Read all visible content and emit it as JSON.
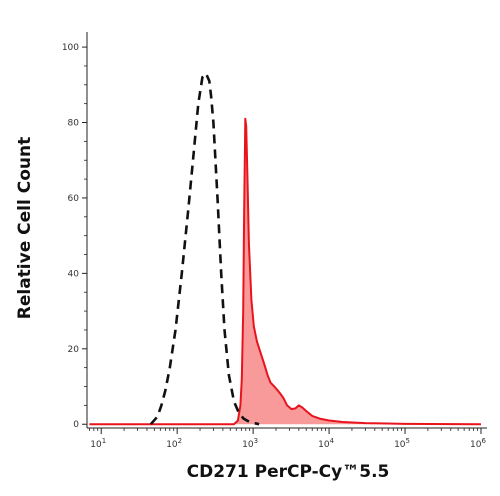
{
  "chart_data": {
    "type": "area",
    "title": "",
    "xlabel": "CD271 PerCP-Cy™5.5",
    "ylabel": "Relative Cell Count",
    "xscale": "log",
    "xlim": [
      6.5,
      1200000
    ],
    "ylim": [
      -1,
      104
    ],
    "grid": false,
    "legend": "none",
    "x_ticks": [
      {
        "value": 10,
        "base": "10",
        "exp": "1"
      },
      {
        "value": 100,
        "base": "10",
        "exp": "2"
      },
      {
        "value": 1000,
        "base": "10",
        "exp": "3"
      },
      {
        "value": 10000,
        "base": "10",
        "exp": "4"
      },
      {
        "value": 100000,
        "base": "10",
        "exp": "5"
      },
      {
        "value": 1000000,
        "base": "10",
        "exp": "6"
      }
    ],
    "y_ticks": [
      {
        "value": 0,
        "label": "0"
      },
      {
        "value": 20,
        "label": "20"
      },
      {
        "value": 40,
        "label": "40"
      },
      {
        "value": 60,
        "label": "60"
      },
      {
        "value": 80,
        "label": "80"
      },
      {
        "value": 100,
        "label": "100"
      }
    ],
    "series": [
      {
        "style": "filled",
        "color": "#e8141c",
        "fill": "#f99a9a",
        "points": [
          [
            7,
            0
          ],
          [
            100,
            0
          ],
          [
            300,
            0
          ],
          [
            560,
            0
          ],
          [
            630,
            1
          ],
          [
            680,
            5
          ],
          [
            710,
            12
          ],
          [
            740,
            30
          ],
          [
            760,
            55
          ],
          [
            780,
            72
          ],
          [
            790,
            81
          ],
          [
            810,
            79
          ],
          [
            840,
            66
          ],
          [
            880,
            48
          ],
          [
            950,
            33
          ],
          [
            1020,
            26
          ],
          [
            1120,
            22
          ],
          [
            1250,
            19
          ],
          [
            1400,
            16
          ],
          [
            1550,
            13
          ],
          [
            1700,
            11
          ],
          [
            1900,
            10
          ],
          [
            2100,
            9
          ],
          [
            2300,
            8
          ],
          [
            2500,
            7
          ],
          [
            2800,
            5
          ],
          [
            3200,
            4
          ],
          [
            3600,
            4.2
          ],
          [
            4000,
            5
          ],
          [
            4400,
            4.5
          ],
          [
            5000,
            3.5
          ],
          [
            6000,
            2.2
          ],
          [
            7500,
            1.5
          ],
          [
            10000,
            1
          ],
          [
            15000,
            0.6
          ],
          [
            30000,
            0.3
          ],
          [
            100000,
            0.1
          ],
          [
            1000000,
            0
          ]
        ]
      },
      {
        "style": "dashed",
        "color": "#111111",
        "points": [
          [
            45,
            0
          ],
          [
            55,
            2
          ],
          [
            62,
            5
          ],
          [
            70,
            9
          ],
          [
            80,
            15
          ],
          [
            95,
            25
          ],
          [
            115,
            40
          ],
          [
            140,
            57
          ],
          [
            165,
            72
          ],
          [
            190,
            85
          ],
          [
            215,
            92
          ],
          [
            240,
            93
          ],
          [
            265,
            91
          ],
          [
            280,
            87
          ],
          [
            300,
            80
          ],
          [
            340,
            60
          ],
          [
            380,
            40
          ],
          [
            420,
            25
          ],
          [
            480,
            13
          ],
          [
            560,
            6
          ],
          [
            650,
            3
          ],
          [
            750,
            1.5
          ],
          [
            900,
            0.6
          ],
          [
            1200,
            0
          ]
        ]
      }
    ]
  }
}
